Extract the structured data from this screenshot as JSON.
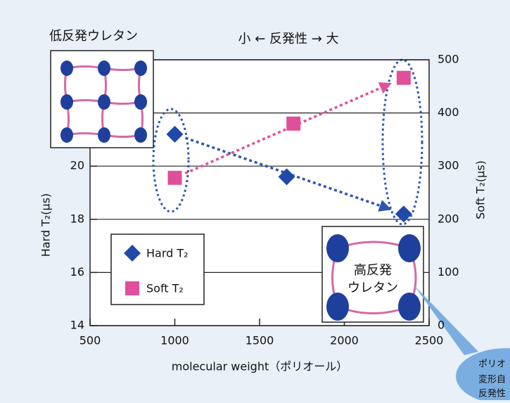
{
  "chart_data": {
    "type": "scatter",
    "title": "小 ← 反発性 → 大",
    "xlabel": "molecular weight（ポリオール）",
    "ylabel": "Hard T₂(μs)",
    "y2label": "Soft T₂(μs)",
    "xlim": [
      500,
      2500
    ],
    "xticks": [
      500,
      1000,
      1500,
      2000,
      2500
    ],
    "ylim": [
      14,
      24
    ],
    "yticks": [
      14,
      16,
      18,
      20
    ],
    "y2lim": [
      0,
      500
    ],
    "y2ticks": [
      0,
      100,
      200,
      300,
      400,
      500
    ],
    "grid": true,
    "legend": "lower left",
    "series": [
      {
        "name": "Hard T₂",
        "color": "#1f4aa8",
        "marker": "diamond",
        "x": [
          1000,
          1660,
          2350
        ],
        "values": [
          21.2,
          19.6,
          18.2
        ]
      },
      {
        "name": "Soft T₂",
        "color": "#e0509a",
        "marker": "square",
        "axis": "y2",
        "x": [
          1000,
          1700,
          2350
        ],
        "values": [
          278,
          380,
          466
        ]
      }
    ],
    "annotations": [
      "低反発ウレタン",
      "高反発",
      "ウレタン",
      "ポリオ",
      "変形自",
      "反発性"
    ]
  }
}
